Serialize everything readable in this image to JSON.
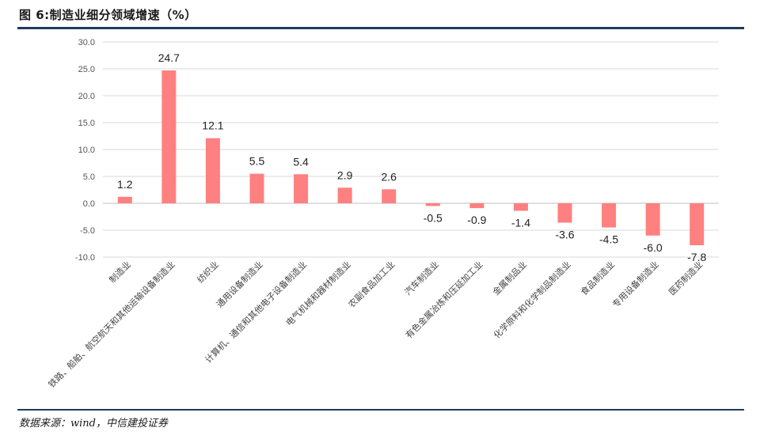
{
  "header": {
    "title": "图 6:制造业细分领域增速（%）"
  },
  "footer": {
    "source": "数据来源：wind，中信建投证券"
  },
  "chart_data": {
    "type": "bar",
    "title": "图 6:制造业细分领域增速（%）",
    "xlabel": "",
    "ylabel": "",
    "ylim": [
      -10,
      30
    ],
    "yticks": [
      "30.0",
      "25.0",
      "20.0",
      "15.0",
      "10.0",
      "5.0",
      "0.0",
      "-5.0",
      "-10.0"
    ],
    "grid": true,
    "legend": "none",
    "bar_color": "#ff8080",
    "categories": [
      "制造业",
      "铁路、船舶、航空航天和其他运输设备制造业",
      "纺织业",
      "通用设备制造业",
      "计算机、通信和其他电子设备制造业",
      "电气机械和器材制造业",
      "农副食品加工业",
      "汽车制造业",
      "有色金属冶炼和压延加工业",
      "金属制品业",
      "化学原料和化学制品制造业",
      "食品制造业",
      "专用设备制造业",
      "医药制造业"
    ],
    "values": [
      1.2,
      24.7,
      12.1,
      5.5,
      5.4,
      2.9,
      2.6,
      -0.5,
      -0.9,
      -1.4,
      -3.6,
      -4.5,
      -6.0,
      -7.8
    ],
    "value_labels": [
      "1.2",
      "24.7",
      "12.1",
      "5.5",
      "5.4",
      "2.9",
      "2.6",
      "-0.5",
      "-0.9",
      "-1.4",
      "-3.6",
      "-4.5",
      "-6.0",
      "-7.8"
    ]
  }
}
